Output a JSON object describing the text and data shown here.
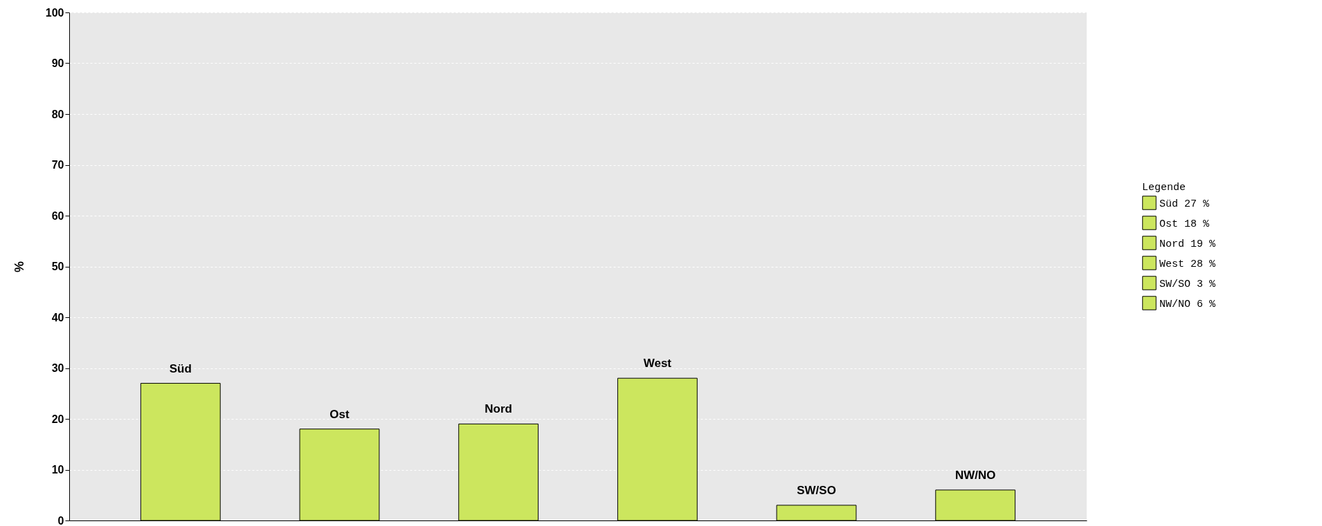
{
  "chart_data": {
    "type": "bar",
    "ylabel": "%",
    "legend_title": "Legende",
    "categories": [
      "Süd",
      "Ost",
      "Nord",
      "West",
      "SW/SO",
      "NW/NO"
    ],
    "stacked": true,
    "series": [
      {
        "name": "Süd 27 %",
        "color": "#cce65e",
        "values": [
          27,
          null,
          null,
          null,
          null,
          null
        ]
      },
      {
        "name": "Ost 18 %",
        "color": "#cce65e",
        "values": [
          null,
          18,
          null,
          null,
          null,
          null
        ]
      },
      {
        "name": "Nord 19 %",
        "color": "#cce65e",
        "values": [
          null,
          null,
          19,
          null,
          null,
          null
        ]
      },
      {
        "name": "West 28 %",
        "color": "#cce65e",
        "values": [
          null,
          null,
          null,
          28,
          null,
          null
        ]
      },
      {
        "name": "SW/SO 3 %",
        "color": "#cce65e",
        "values": [
          null,
          null,
          null,
          null,
          3,
          null
        ]
      },
      {
        "name": "NW/NO 6 %",
        "color": "#cce65e",
        "values": [
          null,
          null,
          null,
          null,
          null,
          6
        ]
      }
    ],
    "ylim": [
      0,
      100
    ],
    "yticks": [
      0,
      10,
      20,
      30,
      40,
      50,
      60,
      70,
      80,
      90,
      100
    ],
    "grid": "y",
    "legend": "right",
    "tick_labels": "y"
  }
}
